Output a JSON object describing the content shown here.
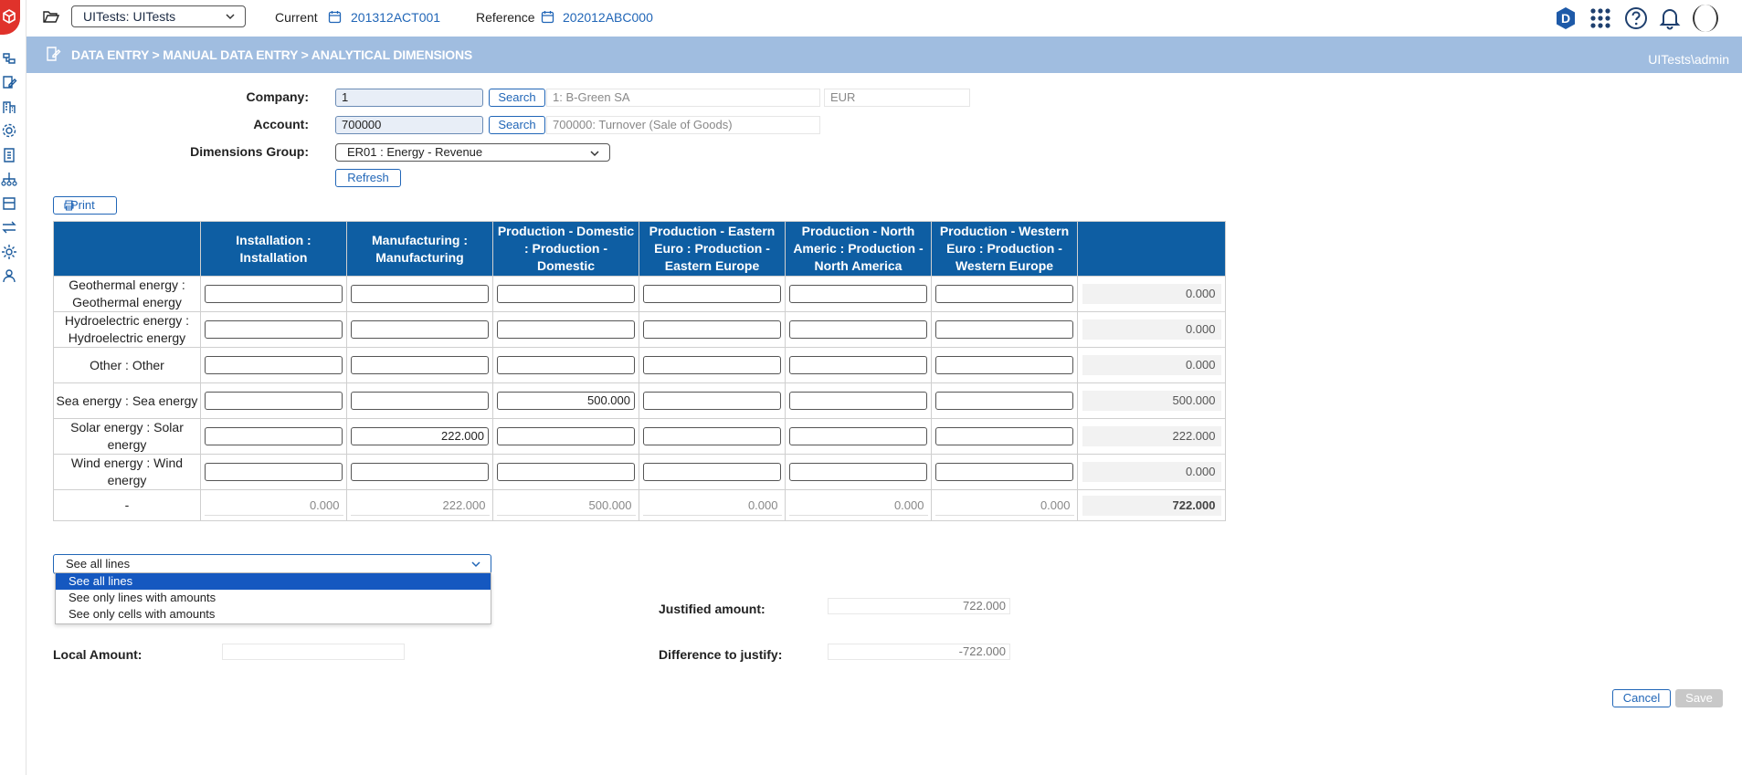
{
  "topbar": {
    "workspace_select": "UITests: UITests",
    "current_label": "Current",
    "current_value": "201312ACT001",
    "reference_label": "Reference",
    "reference_value": "202012ABC000",
    "avatar_letter": "D"
  },
  "header": {
    "breadcrumb": "DATA ENTRY > MANUAL DATA ENTRY > ANALYTICAL DIMENSIONS",
    "user": "UITests\\admin"
  },
  "form": {
    "company_label": "Company:",
    "company_value": "1",
    "company_search": "Search",
    "company_desc": "1: B-Green SA",
    "company_currency": "EUR",
    "account_label": "Account:",
    "account_value": "700000",
    "account_search": "Search",
    "account_desc": "700000: Turnover (Sale of Goods)",
    "dimgroup_label": "Dimensions Group:",
    "dimgroup_value": "ER01 : Energy - Revenue",
    "refresh_label": "Refresh",
    "print_label": "Print"
  },
  "grid": {
    "columns": [
      "Installation : Installation",
      "Manufacturing : Manufacturing",
      "Production - Domestic : Production - Domestic",
      "Production - Eastern Euro : Production - Eastern Europe",
      "Production - North Americ : Production - North America",
      "Production - Western Euro : Production - Western Europe"
    ],
    "rows": [
      {
        "label": "Geothermal energy : Geothermal energy",
        "cells": [
          "",
          "",
          "",
          "",
          "",
          ""
        ],
        "total": "0.000"
      },
      {
        "label": "Hydroelectric energy : Hydroelectric energy",
        "cells": [
          "",
          "",
          "",
          "",
          "",
          ""
        ],
        "total": "0.000"
      },
      {
        "label": "Other : Other",
        "cells": [
          "",
          "",
          "",
          "",
          "",
          ""
        ],
        "total": "0.000"
      },
      {
        "label": "Sea energy : Sea energy",
        "cells": [
          "",
          "",
          "500.000",
          "",
          "",
          ""
        ],
        "total": "500.000"
      },
      {
        "label": "Solar energy : Solar energy",
        "cells": [
          "",
          "222.000",
          "",
          "",
          "",
          ""
        ],
        "total": "222.000"
      },
      {
        "label": "Wind energy : Wind energy",
        "cells": [
          "",
          "",
          "",
          "",
          "",
          ""
        ],
        "total": "0.000"
      }
    ],
    "footer": {
      "label": "-",
      "totals": [
        "0.000",
        "222.000",
        "500.000",
        "0.000",
        "0.000",
        "0.000"
      ],
      "grand_total": "722.000"
    }
  },
  "filter": {
    "selected": "See all lines",
    "options": [
      "See all lines",
      "See only lines with amounts",
      "See only cells with amounts"
    ]
  },
  "amounts": {
    "justified_label": "Justified amount:",
    "justified_value": "722.000",
    "local_label": "Local Amount:",
    "local_value": "",
    "difference_label": "Difference to justify:",
    "difference_value": "-722.000"
  },
  "actions": {
    "cancel": "Cancel",
    "save": "Save"
  },
  "colors": {
    "header_band": "#a0bde0",
    "grid_header": "#0e5ea3",
    "accent": "#2166b7",
    "logo": "#e0322b"
  }
}
